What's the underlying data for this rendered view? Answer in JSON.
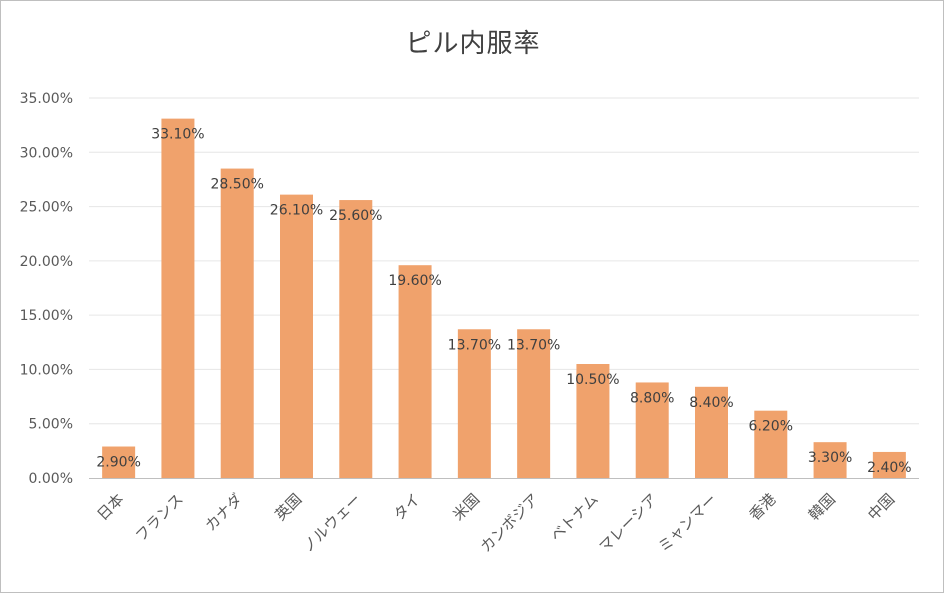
{
  "chart_data": {
    "type": "bar",
    "title": "ピル内服率",
    "categories": [
      "日本",
      "フランス",
      "カナダ",
      "英国",
      "ノルウェー",
      "タイ",
      "米国",
      "カンボジア",
      "ベトナム",
      "マレーシア",
      "ミャンマー",
      "香港",
      "韓国",
      "中国"
    ],
    "values": [
      2.9,
      33.1,
      28.5,
      26.1,
      25.6,
      19.6,
      13.7,
      13.7,
      10.5,
      8.8,
      8.4,
      6.2,
      3.3,
      2.4
    ],
    "data_labels": [
      "2.90%",
      "33.10%",
      "28.50%",
      "26.10%",
      "25.60%",
      "19.60%",
      "13.70%",
      "13.70%",
      "10.50%",
      "8.80%",
      "8.40%",
      "6.20%",
      "3.30%",
      "2.40%"
    ],
    "y_ticks": [
      "0.00%",
      "5.00%",
      "10.00%",
      "15.00%",
      "20.00%",
      "25.00%",
      "30.00%",
      "35.00%"
    ],
    "ylim": [
      0,
      35
    ],
    "grid": true,
    "legend": "none",
    "bar_color": "#f0a26c",
    "grid_color": "#e6e6e6",
    "axis_color": "#bfbfbf"
  }
}
